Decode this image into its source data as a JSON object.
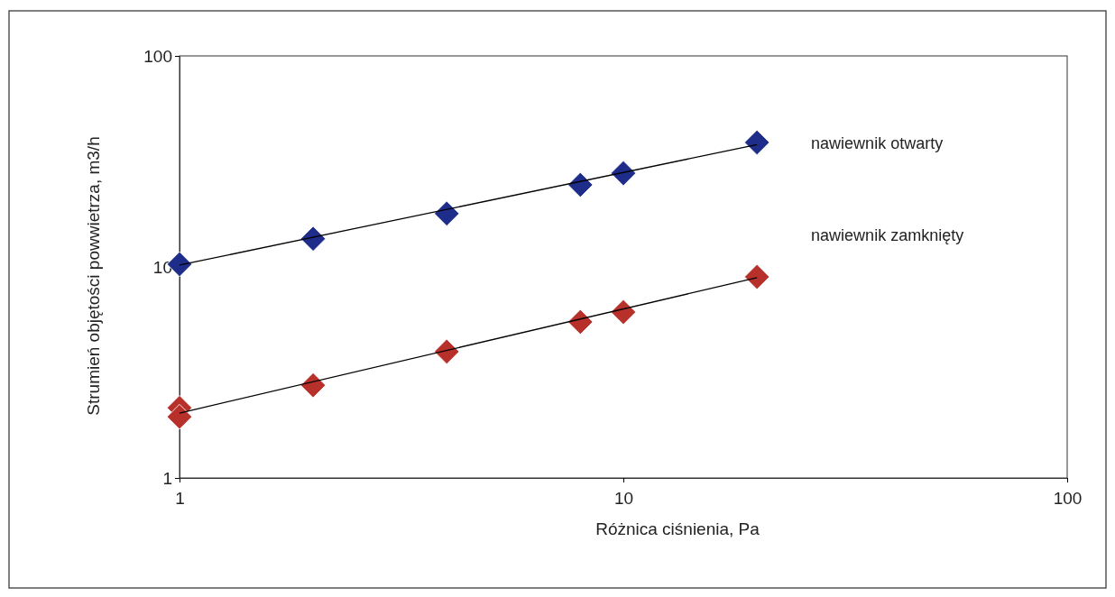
{
  "chart_data": {
    "type": "scatter",
    "xlabel": "Różnica ciśnienia, Pa",
    "ylabel": "Strumień objętości powwietrza, m3/h",
    "log": "xy",
    "xlim": [
      1,
      100
    ],
    "xticks": [
      1,
      10,
      100
    ],
    "ylim": [
      1,
      100
    ],
    "yticks": [
      1,
      10,
      100
    ],
    "grid": false,
    "series": [
      {
        "name": "nawiewnik otwarty",
        "color": "#1f2d8a",
        "marker": "diamond",
        "x": [
          1,
          2,
          4,
          8,
          10,
          20
        ],
        "values": [
          10.3,
          13.6,
          17.9,
          24.5,
          27.8,
          38.9
        ]
      },
      {
        "name": "nawiewnik zamknięty",
        "color": "#b8302a",
        "marker": "diamond",
        "x": [
          1,
          1,
          2,
          4,
          8,
          10,
          20
        ],
        "values": [
          2.15,
          1.95,
          2.75,
          3.97,
          5.49,
          6.11,
          8.97
        ]
      },
      {
        "type": "line",
        "color": "#000000",
        "x": [
          1,
          20
        ],
        "values": [
          10.2,
          38
        ]
      },
      {
        "type": "line",
        "color": "#000000",
        "x": [
          1,
          20
        ],
        "values": [
          2.03,
          8.9
        ]
      }
    ]
  }
}
